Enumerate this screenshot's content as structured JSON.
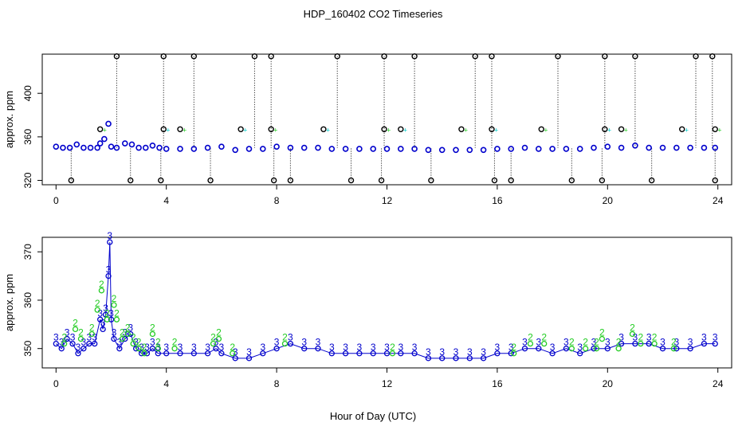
{
  "title": "HDP_160402  CO2 Timeseries",
  "xlabel": "Hour of Day (UTC)",
  "colors": {
    "blue": "#0000cc",
    "green": "#22cc22",
    "cyan": "#00cccc",
    "black": "#000000"
  },
  "chart_data": [
    {
      "type": "scatter",
      "panel": "top",
      "xlabel": "",
      "ylabel": "approx. ppm",
      "xlim": [
        -0.5,
        24.5
      ],
      "ylim": [
        316,
        436
      ],
      "xticks": [
        0,
        4,
        8,
        12,
        16,
        20,
        24
      ],
      "yticks": [
        320,
        360,
        400
      ],
      "x": [
        0.0,
        0.25,
        0.5,
        0.75,
        1.0,
        1.25,
        1.5,
        1.6,
        1.75,
        1.9,
        2.0,
        2.2,
        2.5,
        2.75,
        3.0,
        3.25,
        3.5,
        3.75,
        4.0,
        4.5,
        5.0,
        5.5,
        6.0,
        6.5,
        7.0,
        7.5,
        8.0,
        8.5,
        9.0,
        9.5,
        10.0,
        10.5,
        11.0,
        11.5,
        12.0,
        12.5,
        13.0,
        13.5,
        14.0,
        14.5,
        15.0,
        15.5,
        16.0,
        16.5,
        17.0,
        17.5,
        18.0,
        18.5,
        19.0,
        19.5,
        20.0,
        20.5,
        21.0,
        21.5,
        22.0,
        22.5,
        23.0,
        23.5,
        23.9
      ],
      "y": [
        351,
        350,
        350,
        353,
        350,
        350,
        350,
        354,
        358,
        372,
        351,
        350,
        354,
        353,
        350,
        350,
        352,
        350,
        349,
        349,
        349,
        350,
        351,
        348,
        349,
        349,
        351,
        350,
        350,
        350,
        349,
        349,
        349,
        349,
        349,
        349,
        349,
        348,
        348,
        348,
        348,
        348,
        349,
        349,
        350,
        349,
        349,
        349,
        349,
        350,
        351,
        350,
        352,
        350,
        350,
        350,
        350,
        350,
        350
      ],
      "outliers_high_x": [
        2.2,
        3.9,
        5.0,
        7.2,
        7.8,
        10.2,
        11.9,
        13.0,
        15.2,
        15.8,
        18.2,
        19.9,
        21.0,
        23.2,
        23.8
      ],
      "outliers_low_x": [
        0.55,
        2.7,
        3.8,
        5.6,
        7.9,
        8.5,
        10.7,
        11.8,
        13.6,
        15.9,
        16.5,
        18.7,
        19.8,
        21.6,
        23.9
      ],
      "outliers_mid_x": [
        1.6,
        3.9,
        4.5,
        6.7,
        7.8,
        9.7,
        11.9,
        12.5,
        14.7,
        15.8,
        17.6,
        19.9,
        20.5,
        22.7,
        23.9
      ],
      "outlier_values": {
        "high": 434,
        "mid": 367,
        "low": 320
      }
    },
    {
      "type": "scatter",
      "panel": "bottom",
      "xlabel": "Hour of Day (UTC)",
      "ylabel": "approx. ppm",
      "xlim": [
        -0.5,
        24.5
      ],
      "ylim": [
        346,
        373
      ],
      "xticks": [
        0,
        4,
        8,
        12,
        16,
        20,
        24
      ],
      "yticks": [
        350,
        360,
        370
      ],
      "series": [
        {
          "marker": "3",
          "color": "blue",
          "x": [
            0.0,
            0.2,
            0.4,
            0.6,
            0.8,
            1.0,
            1.2,
            1.4,
            1.6,
            1.7,
            1.8,
            1.9,
            1.95,
            2.0,
            2.1,
            2.3,
            2.5,
            2.7,
            2.9,
            3.1,
            3.3,
            3.5,
            3.7,
            4.0,
            4.5,
            5.0,
            5.5,
            5.8,
            6.0,
            6.5,
            7.0,
            7.5,
            8.0,
            8.5,
            9.0,
            9.5,
            10.0,
            10.5,
            11.0,
            11.5,
            12.0,
            12.5,
            13.0,
            13.5,
            14.0,
            14.5,
            15.0,
            15.5,
            16.0,
            16.5,
            17.0,
            17.5,
            18.0,
            18.5,
            19.0,
            19.5,
            20.0,
            20.5,
            21.0,
            21.5,
            22.0,
            22.5,
            23.0,
            23.5,
            23.9
          ],
          "y": [
            351,
            350,
            352,
            351,
            349,
            350,
            351,
            351,
            356,
            354,
            357,
            365,
            372,
            356,
            352,
            350,
            352,
            353,
            350,
            349,
            349,
            350,
            349,
            349,
            349,
            349,
            349,
            350,
            349,
            348,
            348,
            349,
            350,
            351,
            350,
            350,
            349,
            349,
            349,
            349,
            349,
            349,
            349,
            348,
            348,
            348,
            348,
            348,
            349,
            349,
            350,
            350,
            349,
            350,
            349,
            350,
            350,
            351,
            351,
            351,
            350,
            350,
            350,
            351,
            351
          ]
        },
        {
          "marker": "2",
          "color": "green",
          "x": [
            0.3,
            0.7,
            0.9,
            1.3,
            1.5,
            1.65,
            1.85,
            2.1,
            2.2,
            2.4,
            2.6,
            2.8,
            3.0,
            3.2,
            3.5,
            3.7,
            4.3,
            5.7,
            5.9,
            6.4,
            8.3,
            12.2,
            16.6,
            17.2,
            17.7,
            18.7,
            19.2,
            19.6,
            19.8,
            20.4,
            20.9,
            21.2,
            21.7,
            22.4
          ],
          "y": [
            351,
            354,
            352,
            353,
            358,
            362,
            356,
            359,
            356,
            352,
            353,
            351,
            350,
            349,
            353,
            350,
            350,
            351,
            352,
            349,
            351,
            349,
            349,
            351,
            351,
            350,
            350,
            350,
            352,
            350,
            353,
            351,
            351,
            350
          ]
        }
      ]
    }
  ]
}
